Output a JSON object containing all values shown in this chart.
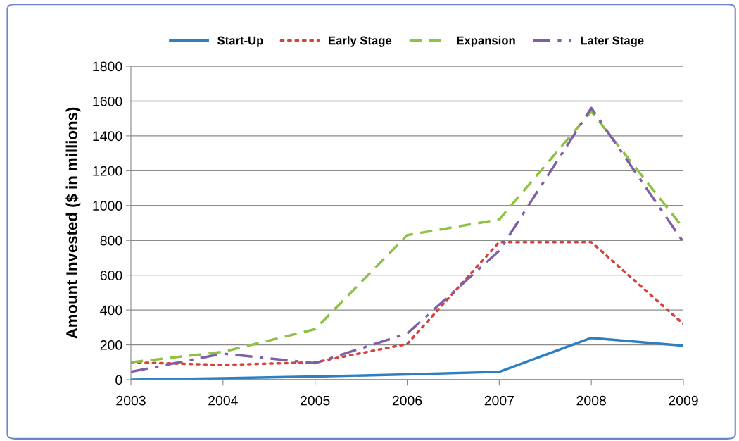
{
  "chart_data": {
    "type": "line",
    "ylabel": "Amount Invested ($ in millions)",
    "x": [
      2003,
      2004,
      2005,
      2006,
      2007,
      2008,
      2009
    ],
    "xlim": [
      2003,
      2009
    ],
    "xticks": [
      2003,
      2004,
      2005,
      2006,
      2007,
      2008,
      2009
    ],
    "ylim": [
      0,
      1800
    ],
    "yticks": [
      0,
      200,
      400,
      600,
      800,
      1000,
      1200,
      1400,
      1600,
      1800
    ],
    "grid": "y",
    "legend": "top",
    "marker": "none",
    "series": [
      {
        "name": "Start-Up",
        "color": "#2e7fc0",
        "line_style": "solid",
        "values": [
          0,
          8,
          18,
          30,
          45,
          240,
          195
        ]
      },
      {
        "name": "Early Stage",
        "color": "#d9413b",
        "line_style": "dotted",
        "values": [
          100,
          85,
          100,
          205,
          790,
          790,
          320
        ]
      },
      {
        "name": "Expansion",
        "color": "#8fc144",
        "line_style": "dashed",
        "values": [
          100,
          160,
          290,
          830,
          920,
          1540,
          870
        ]
      },
      {
        "name": "Later Stage",
        "color": "#7f5fa6",
        "line_style": "dashdot",
        "values": [
          45,
          150,
          95,
          265,
          740,
          1560,
          790
        ]
      }
    ]
  }
}
